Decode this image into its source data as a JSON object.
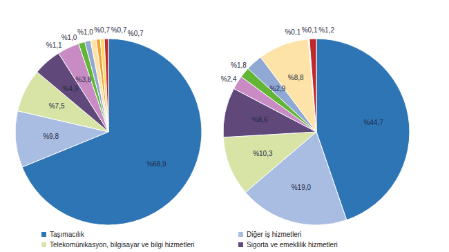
{
  "chart_data": {
    "type": "pie",
    "categories": [
      "Taşımacılık",
      "Diğer iş hizmetleri",
      "Telekomünikasyon, bilgisayar ve bilgi hizmetleri",
      "Sigorta ve emeklilik hizmetleri",
      null,
      null,
      null,
      null,
      null,
      null,
      null
    ],
    "colors": [
      "#2e75b6",
      "#a9bde3",
      "#d7e4a6",
      "#60497a",
      "#c88bc4",
      "#63b536",
      "#8fa8d4",
      "#fde3a7",
      "#f4a13a",
      "#ffd966",
      "#c0292b"
    ],
    "series": [
      {
        "values": [
          68.9,
          9.8,
          7.5,
          4.9,
          3.8,
          1.1,
          1.0,
          1.0,
          0.7,
          0.7,
          0.7
        ],
        "value_labels": [
          "%68,9",
          "%9,8",
          "%7,5",
          "%4,9",
          "%3,8",
          "%1,1",
          "%1,0",
          "%1,0",
          "%0,7",
          "%0,7",
          "%0,7"
        ]
      },
      {
        "values": [
          44.7,
          19.0,
          10.3,
          8.6,
          2.4,
          1.8,
          2.9,
          8.8,
          0.1,
          0.1,
          1.2
        ],
        "value_labels": [
          "%44,7",
          "%19,0",
          "%10,3",
          "%8,6",
          "%2,4",
          "%1,8",
          "%2,9",
          "%8,8",
          "%0,1",
          "%0,1",
          "%1,2"
        ]
      }
    ],
    "data_labels": true,
    "legend": "bottom"
  }
}
